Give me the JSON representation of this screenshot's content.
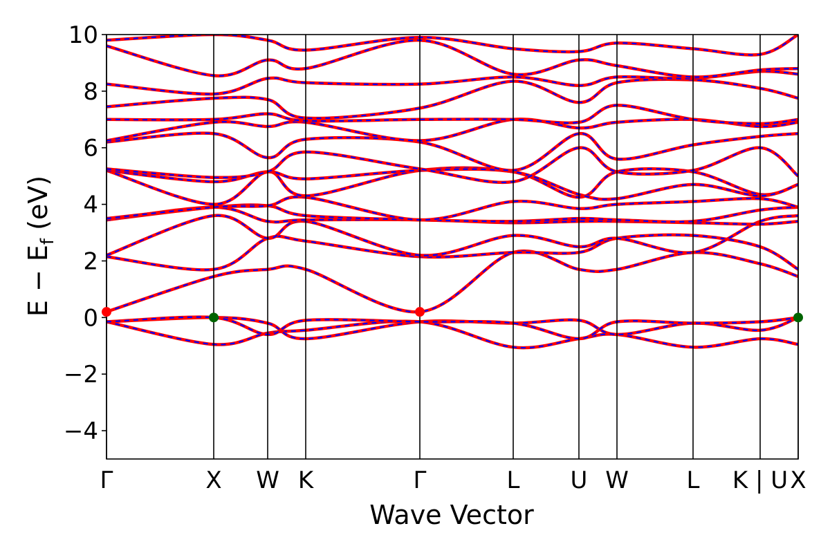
{
  "chart_data": {
    "type": "line",
    "title": "",
    "xlabel": "Wave Vector",
    "ylabel_main": "E − E",
    "ylabel_sub": "f",
    "ylabel_unit": " (eV)",
    "ylim": [
      -5,
      10
    ],
    "yticks": [
      {
        "value": -4,
        "label": "−4"
      },
      {
        "value": -2,
        "label": "−2"
      },
      {
        "value": 0,
        "label": "0"
      },
      {
        "value": 2,
        "label": "2"
      },
      {
        "value": 4,
        "label": "4"
      },
      {
        "value": 6,
        "label": "6"
      },
      {
        "value": 8,
        "label": "8"
      },
      {
        "value": 10,
        "label": "10"
      }
    ],
    "xlim": [
      0,
      10
    ],
    "kpoints": [
      {
        "label": "Γ",
        "x": 0.0
      },
      {
        "label": "X",
        "x": 1.55
      },
      {
        "label": "W",
        "x": 2.33
      },
      {
        "label": "K",
        "x": 2.88
      },
      {
        "label": "Γ",
        "x": 4.53
      },
      {
        "label": "L",
        "x": 5.88
      },
      {
        "label": "U",
        "x": 6.83
      },
      {
        "label": "W",
        "x": 7.38
      },
      {
        "label": "L",
        "x": 8.48
      },
      {
        "label": "K | U",
        "x": 9.45
      },
      {
        "label": "X",
        "x": 10.0
      }
    ],
    "grid": false,
    "legend": "none",
    "series_style": {
      "base_color": "#ff0000",
      "dash_color": "#0000ff"
    },
    "highlight_points": [
      {
        "x": 0.0,
        "y": 0.2,
        "color": "#ff0000"
      },
      {
        "x": 4.53,
        "y": 0.2,
        "color": "#ff0000"
      },
      {
        "x": 1.55,
        "y": 0.0,
        "color": "#006400"
      },
      {
        "x": 10.0,
        "y": 0.0,
        "color": "#006400"
      }
    ],
    "series": [
      {
        "x": [
          0,
          1.55,
          2.33,
          2.88,
          4.53,
          5.88,
          6.83,
          7.38,
          8.48,
          9.45,
          10
        ],
        "values": [
          -0.15,
          -0.95,
          -0.55,
          -0.45,
          -0.15,
          -1.05,
          -0.75,
          -0.6,
          -1.05,
          -0.75,
          -0.95
        ]
      },
      {
        "x": [
          0,
          1.55,
          2.33,
          2.88,
          4.53,
          5.88,
          6.83,
          7.38,
          8.48,
          9.45,
          10
        ],
        "values": [
          -0.15,
          -0.0,
          -0.2,
          -0.75,
          -0.15,
          -0.2,
          -0.1,
          -0.6,
          -0.2,
          -0.45,
          0.0
        ]
      },
      {
        "x": [
          0,
          1.55,
          2.33,
          2.88,
          4.53,
          5.88,
          6.83,
          7.38,
          8.48,
          9.45,
          10
        ],
        "values": [
          -0.15,
          -0.0,
          -0.6,
          -0.1,
          -0.15,
          -0.2,
          -0.75,
          -0.15,
          -0.2,
          -0.15,
          0.0
        ]
      },
      {
        "x": [
          0,
          1.55,
          2.33,
          2.88,
          4.53,
          5.88,
          6.83,
          7.38,
          8.48,
          9.45,
          10
        ],
        "values": [
          0.2,
          1.45,
          1.7,
          1.7,
          0.2,
          2.3,
          1.7,
          1.7,
          2.3,
          1.9,
          1.45
        ]
      },
      {
        "x": [
          0,
          1.55,
          2.33,
          2.88,
          4.53,
          5.88,
          6.83,
          7.38,
          8.48,
          9.45,
          10
        ],
        "values": [
          2.15,
          1.7,
          2.8,
          2.7,
          2.15,
          2.3,
          2.3,
          2.8,
          2.9,
          2.5,
          1.7
        ]
      },
      {
        "x": [
          0,
          1.55,
          2.33,
          2.88,
          4.53,
          5.88,
          6.83,
          7.38,
          8.48,
          9.45,
          10
        ],
        "values": [
          2.2,
          3.6,
          2.8,
          3.4,
          2.2,
          2.9,
          2.5,
          2.8,
          2.3,
          3.4,
          3.6
        ]
      },
      {
        "x": [
          0,
          1.55,
          2.33,
          2.88,
          4.53,
          5.88,
          6.83,
          7.38,
          8.48,
          9.45,
          10
        ],
        "values": [
          3.45,
          3.9,
          3.4,
          3.45,
          3.45,
          3.35,
          3.4,
          3.4,
          3.35,
          3.3,
          3.4
        ]
      },
      {
        "x": [
          0,
          1.55,
          2.33,
          2.88,
          4.53,
          5.88,
          6.83,
          7.38,
          8.48,
          9.45,
          10
        ],
        "values": [
          3.45,
          3.9,
          3.95,
          3.6,
          3.45,
          3.4,
          3.5,
          3.45,
          3.4,
          3.8,
          3.9
        ]
      },
      {
        "x": [
          0,
          1.55,
          2.33,
          2.88,
          4.53,
          5.88,
          6.83,
          7.38,
          8.48,
          9.45,
          10
        ],
        "values": [
          3.5,
          3.9,
          3.95,
          4.25,
          3.45,
          4.1,
          3.85,
          4.0,
          4.1,
          4.2,
          3.9
        ]
      },
      {
        "x": [
          0,
          1.55,
          2.33,
          2.88,
          4.53,
          5.88,
          6.83,
          7.38,
          8.48,
          9.45,
          10
        ],
        "values": [
          5.2,
          4.0,
          5.15,
          4.3,
          5.2,
          5.15,
          4.25,
          5.15,
          5.15,
          4.35,
          4.7
        ]
      },
      {
        "x": [
          0,
          1.55,
          2.33,
          2.88,
          4.53,
          5.88,
          6.83,
          7.38,
          8.48,
          9.45,
          10
        ],
        "values": [
          5.2,
          4.8,
          5.15,
          4.9,
          5.2,
          5.15,
          4.35,
          4.2,
          4.7,
          4.3,
          4.7
        ]
      },
      {
        "x": [
          0,
          1.55,
          2.33,
          2.88,
          4.53,
          5.88,
          6.83,
          7.38,
          8.48,
          9.45,
          10
        ],
        "values": [
          5.25,
          4.95,
          5.15,
          5.85,
          5.25,
          4.8,
          6.0,
          5.15,
          5.2,
          6.0,
          5.0
        ]
      },
      {
        "x": [
          0,
          1.55,
          2.33,
          2.88,
          4.53,
          5.88,
          6.83,
          7.38,
          8.48,
          9.45,
          10
        ],
        "values": [
          6.2,
          6.5,
          5.65,
          6.3,
          6.2,
          5.2,
          6.5,
          5.6,
          6.1,
          6.4,
          6.5
        ]
      },
      {
        "x": [
          0,
          1.55,
          2.33,
          2.88,
          4.53,
          5.88,
          6.83,
          7.38,
          8.48,
          9.45,
          10
        ],
        "values": [
          6.25,
          6.9,
          6.75,
          6.9,
          6.25,
          7.0,
          6.7,
          6.9,
          7.0,
          6.75,
          6.9
        ]
      },
      {
        "x": [
          0,
          1.55,
          2.33,
          2.88,
          4.53,
          5.88,
          6.83,
          7.38,
          8.48,
          9.45,
          10
        ],
        "values": [
          7.0,
          7.0,
          7.2,
          6.95,
          7.0,
          7.0,
          6.9,
          7.5,
          7.0,
          6.85,
          7.0
        ]
      },
      {
        "x": [
          0,
          1.55,
          2.33,
          2.88,
          4.53,
          5.88,
          6.83,
          7.38,
          8.48,
          9.45,
          10
        ],
        "values": [
          7.45,
          7.75,
          7.7,
          7.05,
          7.4,
          8.35,
          7.6,
          8.3,
          8.4,
          8.1,
          7.75
        ]
      },
      {
        "x": [
          0,
          1.55,
          2.33,
          2.88,
          4.53,
          5.88,
          6.83,
          7.38,
          8.48,
          9.45,
          10
        ],
        "values": [
          8.25,
          7.9,
          8.45,
          8.3,
          8.25,
          8.5,
          8.2,
          8.5,
          8.45,
          8.7,
          8.6
        ]
      },
      {
        "x": [
          0,
          1.55,
          2.33,
          2.88,
          4.53,
          5.88,
          6.83,
          7.38,
          8.48,
          9.45,
          10
        ],
        "values": [
          9.6,
          8.55,
          9.1,
          8.8,
          9.8,
          8.6,
          9.1,
          8.9,
          8.5,
          8.75,
          8.8
        ]
      },
      {
        "x": [
          0,
          1.55,
          2.33,
          2.88,
          4.53,
          5.88,
          6.83,
          7.38,
          8.48,
          9.45,
          10
        ],
        "values": [
          9.8,
          10.0,
          9.8,
          9.45,
          9.9,
          9.5,
          9.4,
          9.7,
          9.5,
          9.3,
          10.0
        ]
      }
    ]
  }
}
